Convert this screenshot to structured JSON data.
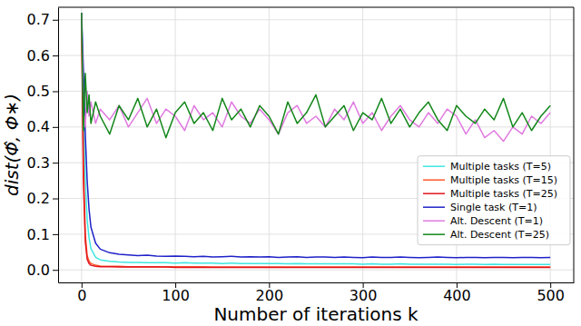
{
  "chart_data": {
    "type": "line",
    "x_label": "Number of iterations k",
    "y_label": "dist(Φ̂, Φ∗)",
    "x": [
      0,
      2,
      4,
      6,
      8,
      10,
      15,
      20,
      30,
      40,
      50,
      60,
      70,
      80,
      90,
      100,
      110,
      120,
      130,
      140,
      150,
      160,
      170,
      180,
      190,
      200,
      210,
      220,
      230,
      240,
      250,
      260,
      270,
      280,
      290,
      300,
      310,
      320,
      330,
      340,
      350,
      360,
      370,
      380,
      390,
      400,
      410,
      420,
      430,
      440,
      450,
      460,
      470,
      480,
      490,
      500
    ],
    "xlim": [
      -25,
      525
    ],
    "xticks": [
      0,
      100,
      200,
      300,
      400,
      500
    ],
    "ylim": [
      -0.035,
      0.735
    ],
    "yticks": [
      {
        "value": 0,
        "label": "0.0"
      },
      0.1,
      0.2,
      0.3,
      0.4,
      0.5,
      0.6,
      0.7
    ],
    "grid": true,
    "legend": "lower right",
    "series": [
      {
        "name": "Multiple tasks (T=5)",
        "color": "#3ee6e0",
        "values": [
          0.72,
          0.45,
          0.25,
          0.14,
          0.09,
          0.06,
          0.035,
          0.028,
          0.024,
          0.022,
          0.021,
          0.021,
          0.02,
          0.02,
          0.02,
          0.019,
          0.02,
          0.019,
          0.019,
          0.019,
          0.018,
          0.019,
          0.018,
          0.018,
          0.018,
          0.018,
          0.018,
          0.017,
          0.018,
          0.017,
          0.017,
          0.017,
          0.017,
          0.017,
          0.017,
          0.016,
          0.017,
          0.016,
          0.016,
          0.017,
          0.016,
          0.016,
          0.016,
          0.016,
          0.016,
          0.015,
          0.016,
          0.016,
          0.015,
          0.016,
          0.015,
          0.015,
          0.015,
          0.015,
          0.015,
          0.015
        ]
      },
      {
        "name": "Multiple tasks (T=15)",
        "color": "#ff5a2a",
        "values": [
          0.72,
          0.3,
          0.1,
          0.04,
          0.025,
          0.018,
          0.013,
          0.011,
          0.01,
          0.01,
          0.009,
          0.009,
          0.009,
          0.009,
          0.009,
          0.009,
          0.009,
          0.009,
          0.009,
          0.008,
          0.008,
          0.008,
          0.008,
          0.008,
          0.008,
          0.008,
          0.008,
          0.008,
          0.008,
          0.008,
          0.008,
          0.008,
          0.008,
          0.008,
          0.008,
          0.008,
          0.008,
          0.008,
          0.008,
          0.008,
          0.008,
          0.008,
          0.008,
          0.008,
          0.008,
          0.008,
          0.008,
          0.008,
          0.008,
          0.008,
          0.008,
          0.008,
          0.008,
          0.008,
          0.008,
          0.008
        ]
      },
      {
        "name": "Multiple tasks (T=25)",
        "color": "#e3141c",
        "values": [
          0.72,
          0.25,
          0.08,
          0.03,
          0.018,
          0.013,
          0.01,
          0.009,
          0.009,
          0.008,
          0.008,
          0.008,
          0.008,
          0.008,
          0.008,
          0.007,
          0.007,
          0.007,
          0.007,
          0.007,
          0.007,
          0.007,
          0.007,
          0.007,
          0.007,
          0.007,
          0.007,
          0.007,
          0.007,
          0.007,
          0.007,
          0.007,
          0.007,
          0.007,
          0.007,
          0.007,
          0.007,
          0.007,
          0.007,
          0.007,
          0.007,
          0.007,
          0.007,
          0.007,
          0.007,
          0.007,
          0.007,
          0.007,
          0.007,
          0.007,
          0.007,
          0.007,
          0.007,
          0.007,
          0.007,
          0.007
        ]
      },
      {
        "name": "Single task (T=1)",
        "color": "#1f22c8",
        "values": [
          0.72,
          0.56,
          0.38,
          0.25,
          0.17,
          0.12,
          0.075,
          0.058,
          0.048,
          0.044,
          0.042,
          0.04,
          0.041,
          0.039,
          0.038,
          0.039,
          0.038,
          0.037,
          0.038,
          0.036,
          0.037,
          0.038,
          0.036,
          0.037,
          0.036,
          0.037,
          0.035,
          0.036,
          0.037,
          0.035,
          0.036,
          0.036,
          0.035,
          0.036,
          0.035,
          0.034,
          0.036,
          0.035,
          0.035,
          0.036,
          0.035,
          0.034,
          0.035,
          0.036,
          0.035,
          0.034,
          0.035,
          0.035,
          0.034,
          0.035,
          0.035,
          0.034,
          0.035,
          0.035,
          0.034,
          0.035
        ]
      },
      {
        "name": "Alt. Descent (T=1)",
        "color": "#e07ae0",
        "values": [
          0.72,
          0.46,
          0.4,
          0.5,
          0.43,
          0.47,
          0.41,
          0.45,
          0.42,
          0.46,
          0.4,
          0.44,
          0.48,
          0.41,
          0.45,
          0.43,
          0.39,
          0.46,
          0.42,
          0.44,
          0.4,
          0.47,
          0.43,
          0.41,
          0.45,
          0.42,
          0.38,
          0.44,
          0.46,
          0.41,
          0.43,
          0.4,
          0.45,
          0.42,
          0.47,
          0.41,
          0.44,
          0.39,
          0.43,
          0.46,
          0.42,
          0.4,
          0.44,
          0.41,
          0.45,
          0.43,
          0.38,
          0.42,
          0.37,
          0.39,
          0.36,
          0.4,
          0.38,
          0.43,
          0.41,
          0.44
        ]
      },
      {
        "name": "Alt. Descent (T=25)",
        "color": "#13871a",
        "values": [
          0.72,
          0.39,
          0.55,
          0.44,
          0.49,
          0.41,
          0.47,
          0.43,
          0.38,
          0.46,
          0.42,
          0.48,
          0.4,
          0.45,
          0.37,
          0.44,
          0.47,
          0.41,
          0.44,
          0.39,
          0.48,
          0.42,
          0.45,
          0.4,
          0.46,
          0.43,
          0.38,
          0.47,
          0.41,
          0.44,
          0.49,
          0.4,
          0.43,
          0.46,
          0.39,
          0.44,
          0.42,
          0.48,
          0.41,
          0.45,
          0.4,
          0.44,
          0.47,
          0.42,
          0.39,
          0.46,
          0.43,
          0.41,
          0.45,
          0.42,
          0.48,
          0.4,
          0.44,
          0.39,
          0.43,
          0.46
        ]
      }
    ]
  }
}
